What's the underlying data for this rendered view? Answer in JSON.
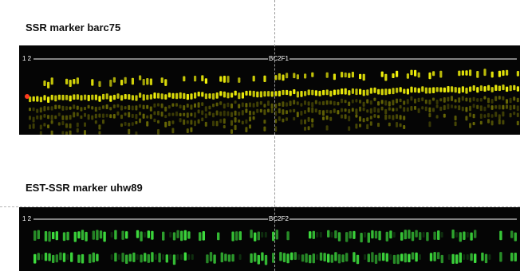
{
  "panels": [
    {
      "title": "SSR marker barc75",
      "lane_label": "1 2",
      "population_label": "BC2F1",
      "band_color": "#f2f20a",
      "smear_color": "#8a8a06"
    },
    {
      "title": "EST-SSR marker uhw89",
      "lane_label": "1 2",
      "population_label": "BC2F2",
      "band_color": "#3ee03e",
      "smear_color": "#1f7a1f"
    }
  ],
  "colors": {
    "gel_background": "#050505",
    "guide_line": "#9a9a9a",
    "marker_dot": "#ff3b1f"
  }
}
